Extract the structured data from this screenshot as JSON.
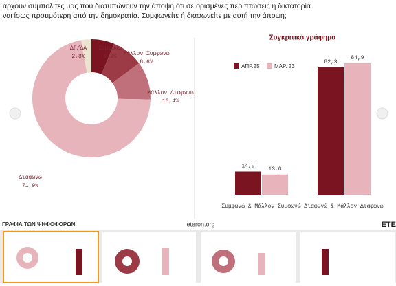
{
  "header": {
    "line1": "αρχουν συμπολίτες μας που διατυπώνουν την άποψη ότι σε ορισμένες περιπτώσεις η δικτατορία",
    "line2": "ναι ίσως προτιμότερη από την δημοκρατία. Συμφωνείτε ή διαφωνείτε με αυτή την άποψη;"
  },
  "chart_data": [
    {
      "type": "donut",
      "categories": [
        "Συμφωνώ",
        "Μάλλον Συμφωνώ",
        "Μάλλον Διαφωνώ",
        "Διαφωνώ",
        "ΔΓ/ΔΑ"
      ],
      "values": [
        6.3,
        8.6,
        10.4,
        71.9,
        2.8
      ],
      "value_labels": [
        "6,3%",
        "8,6%",
        "10,4%",
        "71,9%",
        "2,8%"
      ],
      "colors": [
        "#7a1420",
        "#9c3a45",
        "#c0707a",
        "#e8b4bc",
        "#ece3d0"
      ]
    },
    {
      "type": "bar",
      "title": "Συγκριτικό γράφημα",
      "categories": [
        "Συμφωνώ & Μάλλον Συμφωνώ",
        "Διαφωνώ & Μάλλον Διαφωνώ"
      ],
      "series": [
        {
          "name": "ΑΠΡ.25",
          "color": "#7a1420",
          "values": [
            14.9,
            82.3
          ],
          "value_labels": [
            "14,9",
            "82,3"
          ]
        },
        {
          "name": "ΜΑΡ. 23",
          "color": "#e8b4bc",
          "values": [
            13.0,
            84.9
          ],
          "value_labels": [
            "13,0",
            "84,9"
          ]
        }
      ],
      "ylim": [
        0,
        100
      ]
    }
  ],
  "footer": {
    "left": "ΓΡΑΦΙΑ ΤΩΝ ΨΗΦΟΦΟΡΩΝ",
    "center": "eteron.org",
    "right": "ETE"
  }
}
